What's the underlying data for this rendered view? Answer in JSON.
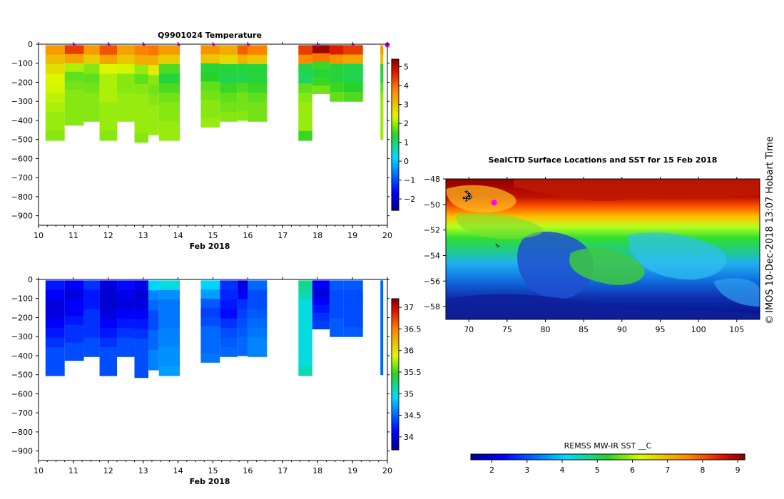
{
  "colors": {
    "background": "#ffffff",
    "axis": "#000000",
    "float_marker": "#ff00ff"
  },
  "credit": {
    "copyright_symbol": "©",
    "text": "IMOS 10-Dec-2018 13:07 Hobart Time"
  },
  "chart_data": [
    {
      "id": "temperature",
      "type": "heatmap",
      "title": "Q9901024  Temperature",
      "xlabel": "Feb 2018",
      "ylabel": "",
      "xlim": [
        10,
        20
      ],
      "ylim": [
        -950,
        0
      ],
      "xticks": [
        10,
        11,
        12,
        13,
        14,
        15,
        16,
        17,
        18,
        19,
        20
      ],
      "yticks": [
        0,
        -100,
        -200,
        -300,
        -400,
        -500,
        -600,
        -700,
        -800,
        -900
      ],
      "colorbar": {
        "ticks": [
          -2,
          -1,
          0,
          1,
          2,
          3,
          4,
          5
        ],
        "vmin": -2.6,
        "vmax": 5.4,
        "colormap": "jet"
      },
      "surface_markers_day": [
        11.0,
        12.0,
        13.0,
        14.0,
        15.0,
        16.0,
        18.0,
        19.0,
        20.0
      ],
      "profiles": [
        {
          "start": 10.2,
          "end": 10.75,
          "depth": 500,
          "values": [
            3.5,
            3.1,
            2.7,
            2.4,
            2.3,
            2.2,
            2.1,
            2.0,
            2.0,
            1.9
          ]
        },
        {
          "start": 10.75,
          "end": 11.3,
          "depth": 420,
          "values": [
            4.4,
            3.4,
            2.1,
            1.7,
            1.8,
            1.9,
            1.9,
            1.9,
            1.9
          ]
        },
        {
          "start": 11.3,
          "end": 11.75,
          "depth": 400,
          "values": [
            3.5,
            2.9,
            1.9,
            1.7,
            1.8,
            1.9,
            1.9,
            1.9
          ]
        },
        {
          "start": 11.75,
          "end": 12.25,
          "depth": 500,
          "values": [
            4.2,
            3.4,
            2.4,
            2.1,
            2.1,
            2.1,
            2.0,
            2.0,
            2.0,
            1.9
          ]
        },
        {
          "start": 12.25,
          "end": 12.75,
          "depth": 400,
          "values": [
            3.4,
            3.0,
            2.3,
            1.9,
            1.9,
            2.0,
            2.0,
            2.0
          ]
        },
        {
          "start": 12.75,
          "end": 13.15,
          "depth": 510,
          "values": [
            3.8,
            3.3,
            2.0,
            1.7,
            1.9,
            2.0,
            2.0,
            2.0,
            2.0,
            1.9
          ]
        },
        {
          "start": 13.15,
          "end": 13.45,
          "depth": 470,
          "values": [
            3.9,
            3.3,
            2.5,
            1.9,
            1.8,
            1.9,
            2.0,
            2.0,
            2.0
          ]
        },
        {
          "start": 13.45,
          "end": 14.05,
          "depth": 500,
          "values": [
            3.5,
            2.9,
            1.6,
            1.3,
            1.6,
            1.8,
            1.9,
            1.9,
            2.0,
            2.0
          ]
        },
        {
          "start": 14.65,
          "end": 15.2,
          "depth": 430,
          "values": [
            3.6,
            3.0,
            1.3,
            1.4,
            1.7,
            1.8,
            1.9,
            1.9,
            2.0
          ]
        },
        {
          "start": 15.2,
          "end": 15.7,
          "depth": 400,
          "values": [
            3.3,
            2.8,
            1.3,
            1.2,
            1.5,
            1.7,
            1.8,
            1.9
          ]
        },
        {
          "start": 15.7,
          "end": 16.0,
          "depth": 395,
          "values": [
            4.1,
            3.2,
            1.3,
            1.2,
            1.6,
            1.8,
            1.8,
            1.9
          ]
        },
        {
          "start": 16.0,
          "end": 16.55,
          "depth": 400,
          "values": [
            3.8,
            3.0,
            1.3,
            1.3,
            1.5,
            1.7,
            1.8,
            1.8
          ]
        },
        {
          "start": 17.45,
          "end": 17.85,
          "depth": 500,
          "values": [
            4.4,
            3.7,
            1.2,
            1.1,
            1.7,
            1.9,
            2.0,
            2.0,
            2.0,
            1.5
          ]
        },
        {
          "start": 17.85,
          "end": 18.35,
          "depth": 255,
          "values": [
            5.2,
            3.9,
            1.5,
            1.3,
            1.5,
            1.8
          ]
        },
        {
          "start": 18.35,
          "end": 18.75,
          "depth": 295,
          "values": [
            4.7,
            3.6,
            1.3,
            1.3,
            1.5,
            1.7
          ]
        },
        {
          "start": 18.75,
          "end": 19.3,
          "depth": 295,
          "values": [
            4.4,
            3.4,
            1.2,
            1.2,
            1.4,
            1.6
          ]
        },
        {
          "start": 19.8,
          "end": 19.88,
          "depth": 495,
          "values": [
            3.5,
            3.1,
            1.4,
            1.3,
            1.7,
            1.9,
            2.0,
            2.0,
            2.0,
            2.0
          ]
        }
      ]
    },
    {
      "id": "salinity",
      "type": "heatmap",
      "title": "",
      "xlabel": "Feb 2018",
      "ylabel": "",
      "xlim": [
        10,
        20
      ],
      "ylim": [
        -950,
        0
      ],
      "xticks": [
        10,
        11,
        12,
        13,
        14,
        15,
        16,
        17,
        18,
        19,
        20
      ],
      "yticks": [
        0,
        -100,
        -200,
        -300,
        -400,
        -500,
        -600,
        -700,
        -800,
        -900
      ],
      "colorbar": {
        "ticks": [
          34,
          34.5,
          35,
          35.5,
          36,
          36.5,
          37
        ],
        "vmin": 33.7,
        "vmax": 37.2,
        "colormap": "jet"
      },
      "profiles": [
        {
          "start": 10.2,
          "end": 10.75,
          "depth": 500,
          "values": [
            34.2,
            34.1,
            34.0,
            34.0,
            34.1,
            34.2,
            34.3,
            34.4,
            34.4,
            34.4
          ]
        },
        {
          "start": 10.75,
          "end": 11.3,
          "depth": 420,
          "values": [
            34.1,
            34.0,
            34.1,
            34.1,
            34.2,
            34.3,
            34.3,
            34.4,
            34.4
          ]
        },
        {
          "start": 11.3,
          "end": 11.75,
          "depth": 400,
          "values": [
            34.3,
            34.2,
            34.2,
            34.3,
            34.3,
            34.3,
            34.4,
            34.4
          ]
        },
        {
          "start": 11.75,
          "end": 12.25,
          "depth": 500,
          "values": [
            34.0,
            33.95,
            33.95,
            34.0,
            34.1,
            34.2,
            34.3,
            34.4,
            34.4,
            34.4
          ]
        },
        {
          "start": 12.25,
          "end": 12.75,
          "depth": 400,
          "values": [
            34.15,
            34.05,
            34.0,
            34.1,
            34.2,
            34.3,
            34.4,
            34.4
          ]
        },
        {
          "start": 12.75,
          "end": 13.15,
          "depth": 510,
          "values": [
            34.05,
            33.95,
            34.0,
            34.1,
            34.2,
            34.3,
            34.4,
            34.4,
            34.4,
            34.4
          ]
        },
        {
          "start": 13.15,
          "end": 13.45,
          "depth": 470,
          "values": [
            34.9,
            34.6,
            34.5,
            34.4,
            34.4,
            34.5,
            34.5,
            34.6,
            34.6
          ]
        },
        {
          "start": 13.45,
          "end": 14.05,
          "depth": 500,
          "values": [
            35.0,
            34.65,
            34.55,
            34.55,
            34.55,
            34.6,
            34.6,
            34.65,
            34.65,
            34.7
          ]
        },
        {
          "start": 14.65,
          "end": 15.2,
          "depth": 430,
          "values": [
            34.9,
            34.7,
            34.45,
            34.35,
            34.4,
            34.5,
            34.5,
            34.5,
            34.55
          ]
        },
        {
          "start": 15.2,
          "end": 15.7,
          "depth": 400,
          "values": [
            34.3,
            34.25,
            34.2,
            34.15,
            34.3,
            34.4,
            34.45,
            34.5
          ]
        },
        {
          "start": 15.7,
          "end": 16.0,
          "depth": 395,
          "values": [
            34.0,
            34.1,
            34.3,
            34.35,
            34.4,
            34.45,
            34.5,
            34.5
          ]
        },
        {
          "start": 16.0,
          "end": 16.55,
          "depth": 400,
          "values": [
            34.5,
            34.4,
            34.4,
            34.45,
            34.5,
            34.55,
            34.6,
            34.6
          ]
        },
        {
          "start": 17.45,
          "end": 17.85,
          "depth": 500,
          "values": [
            35.2,
            35.1,
            35.0,
            35.0,
            35.0,
            35.0,
            35.0,
            35.0,
            35.0,
            35.1
          ]
        },
        {
          "start": 17.85,
          "end": 18.35,
          "depth": 255,
          "values": [
            34.1,
            34.0,
            34.1,
            34.2,
            34.3,
            34.35
          ]
        },
        {
          "start": 18.35,
          "end": 18.75,
          "depth": 295,
          "values": [
            34.45,
            34.4,
            34.4,
            34.4,
            34.45,
            34.45
          ]
        },
        {
          "start": 18.75,
          "end": 19.3,
          "depth": 295,
          "values": [
            34.45,
            34.4,
            34.4,
            34.4,
            34.4,
            34.45
          ]
        },
        {
          "start": 19.8,
          "end": 19.88,
          "depth": 495,
          "values": [
            34.5,
            34.5,
            34.5,
            34.5,
            34.5,
            34.5,
            34.5,
            34.5,
            34.5,
            34.5
          ]
        }
      ]
    },
    {
      "id": "sst_map",
      "type": "heatmap",
      "title": "SealCTD Surface Locations and SST for 15 Feb 2018",
      "xlabel": "",
      "ylabel": "",
      "xlim": [
        67,
        108
      ],
      "ylim": [
        -59,
        -48
      ],
      "xticks": [
        70,
        75,
        80,
        85,
        90,
        95,
        100,
        105
      ],
      "yticks": [
        -48,
        -50,
        -52,
        -54,
        -56,
        -58
      ],
      "colorbar": {
        "label": "REMSS MW-IR SST ⸏C",
        "ticks": [
          2,
          3,
          4,
          5,
          6,
          7,
          8,
          9
        ],
        "vmin": 1.4,
        "vmax": 9.2,
        "colormap": "jet"
      },
      "seal_track": [
        [
          69.5,
          -48.9
        ],
        [
          70.1,
          -49.2
        ],
        [
          69.8,
          -49.6
        ],
        [
          70.4,
          -49.4
        ],
        [
          69.2,
          -49.5
        ]
      ],
      "current_position": [
        73.3,
        -49.85
      ],
      "island_marker": [
        73.5,
        -53.1
      ]
    }
  ]
}
